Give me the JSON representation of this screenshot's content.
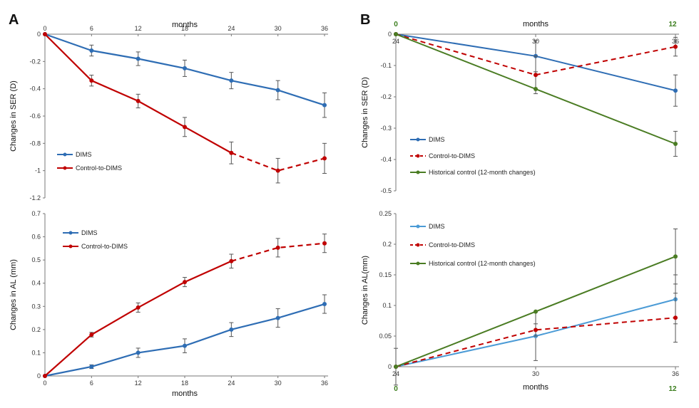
{
  "panels": {
    "a_letter": "A",
    "b_letter": "B"
  },
  "colors": {
    "dims": "#2e6db4",
    "control": "#c00000",
    "historical": "#4a7c23",
    "dims_light": "#4b9bd6",
    "green_label": "#3a7d1c"
  },
  "chart_data": [
    {
      "id": "A-top",
      "type": "line",
      "title": "",
      "xlabel_top": "months",
      "ylabel": "Changes in SER (D)",
      "x_ticks_top": [
        "0",
        "6",
        "12",
        "18",
        "24",
        "30",
        "36"
      ],
      "y_ticks": [
        "0",
        "-0.2",
        "-0.4",
        "-0.6",
        "-0.8",
        "-1",
        "-1.2"
      ],
      "xlim": [
        0,
        36
      ],
      "ylim": [
        -1.2,
        0
      ],
      "x": [
        0,
        6,
        12,
        18,
        24,
        30,
        36
      ],
      "series": [
        {
          "name": "DIMS",
          "color": "#2e6db4",
          "values": [
            0,
            -0.12,
            -0.18,
            -0.25,
            -0.34,
            -0.41,
            -0.52
          ],
          "errors": [
            0,
            0.04,
            0.05,
            0.06,
            0.06,
            0.07,
            0.09
          ],
          "dashed_from": null
        },
        {
          "name": "Control-to-DIMS",
          "color": "#c00000",
          "values": [
            0,
            -0.34,
            -0.49,
            -0.68,
            -0.87,
            -1.0,
            -0.91
          ],
          "errors": [
            0,
            0.04,
            0.05,
            0.07,
            0.08,
            0.09,
            0.11
          ],
          "dashed_from": 24
        }
      ],
      "legend": [
        "DIMS",
        "Control-to-DIMS"
      ]
    },
    {
      "id": "A-bottom",
      "type": "line",
      "xlabel": "months",
      "ylabel": "Changes in AL (mm)",
      "x_ticks": [
        "0",
        "6",
        "12",
        "18",
        "24",
        "30",
        "36"
      ],
      "y_ticks": [
        "0",
        "0.1",
        "0.2",
        "0.3",
        "0.4",
        "0.5",
        "0.6",
        "0.7"
      ],
      "xlim": [
        0,
        36
      ],
      "ylim": [
        0,
        0.7
      ],
      "x": [
        0,
        6,
        12,
        18,
        24,
        30,
        36
      ],
      "series": [
        {
          "name": "DIMS",
          "color": "#2e6db4",
          "values": [
            0,
            0.04,
            0.1,
            0.13,
            0.2,
            0.25,
            0.31
          ],
          "errors": [
            0,
            0.008,
            0.02,
            0.03,
            0.03,
            0.04,
            0.04
          ],
          "dashed_from": null
        },
        {
          "name": "Control-to-DIMS",
          "color": "#c00000",
          "values": [
            0,
            0.178,
            0.295,
            0.405,
            0.495,
            0.553,
            0.572
          ],
          "errors": [
            0,
            0.01,
            0.02,
            0.02,
            0.03,
            0.04,
            0.04
          ],
          "dashed_from": 24
        }
      ],
      "legend": [
        "DIMS",
        "Control-to-DIMS"
      ]
    },
    {
      "id": "B-top",
      "type": "line",
      "xlabel_top": "months",
      "ylabel": "Changes in SER (D)",
      "x_ticks": [
        "24",
        "30",
        "36"
      ],
      "x_ticks_green": [
        "0",
        "12"
      ],
      "y_ticks": [
        "0",
        "-0.1",
        "-0.2",
        "-0.3",
        "-0.4",
        "-0.5"
      ],
      "xlim": [
        24,
        36
      ],
      "ylim": [
        -0.5,
        0
      ],
      "x": [
        24,
        30,
        36
      ],
      "series": [
        {
          "name": "DIMS",
          "color": "#2e6db4",
          "values": [
            0,
            -0.07,
            -0.18
          ],
          "errors": [
            0,
            0.05,
            0.05
          ],
          "dashed": false
        },
        {
          "name": "Control-to-DIMS",
          "color": "#c00000",
          "values": [
            0,
            -0.13,
            -0.04
          ],
          "errors": [
            0,
            0.06,
            0.03
          ],
          "dashed": true
        },
        {
          "name": "Historical control (12-month changes)",
          "color": "#4a7c23",
          "values": [
            0,
            -0.175,
            -0.35
          ],
          "errors": [
            0,
            0.0,
            0.04
          ],
          "dashed": false
        }
      ],
      "legend": [
        "DIMS",
        "Control-to-DIMS",
        "Historical control (12-month changes)"
      ]
    },
    {
      "id": "B-bottom",
      "type": "line",
      "xlabel": "months",
      "ylabel": "Changes in AL(mm)",
      "x_ticks": [
        "24",
        "30",
        "36"
      ],
      "x_ticks_green": [
        "0",
        "12"
      ],
      "y_ticks": [
        "0",
        "0.05",
        "0.1",
        "0.15",
        "0.2",
        "0.25"
      ],
      "xlim": [
        24,
        36
      ],
      "ylim": [
        0,
        0.25
      ],
      "x": [
        24,
        30,
        36
      ],
      "series": [
        {
          "name": "DIMS",
          "color": "#4b9bd6",
          "values": [
            0,
            0.05,
            0.11
          ],
          "errors": [
            0.03,
            0.04,
            0.04
          ],
          "dashed": false
        },
        {
          "name": "Control-to-DIMS",
          "color": "#c00000",
          "values": [
            0,
            0.06,
            0.08
          ],
          "errors": [
            0,
            0.01,
            0.04
          ],
          "dashed": true
        },
        {
          "name": "Historical control (12-month changes)",
          "color": "#4a7c23",
          "values": [
            0,
            0.09,
            0.18
          ],
          "errors": [
            0,
            0.0,
            0.045
          ],
          "dashed": false
        }
      ],
      "legend": [
        "DIMS",
        "Control-to-DIMS",
        "Historical control (12-month changes)"
      ]
    }
  ]
}
